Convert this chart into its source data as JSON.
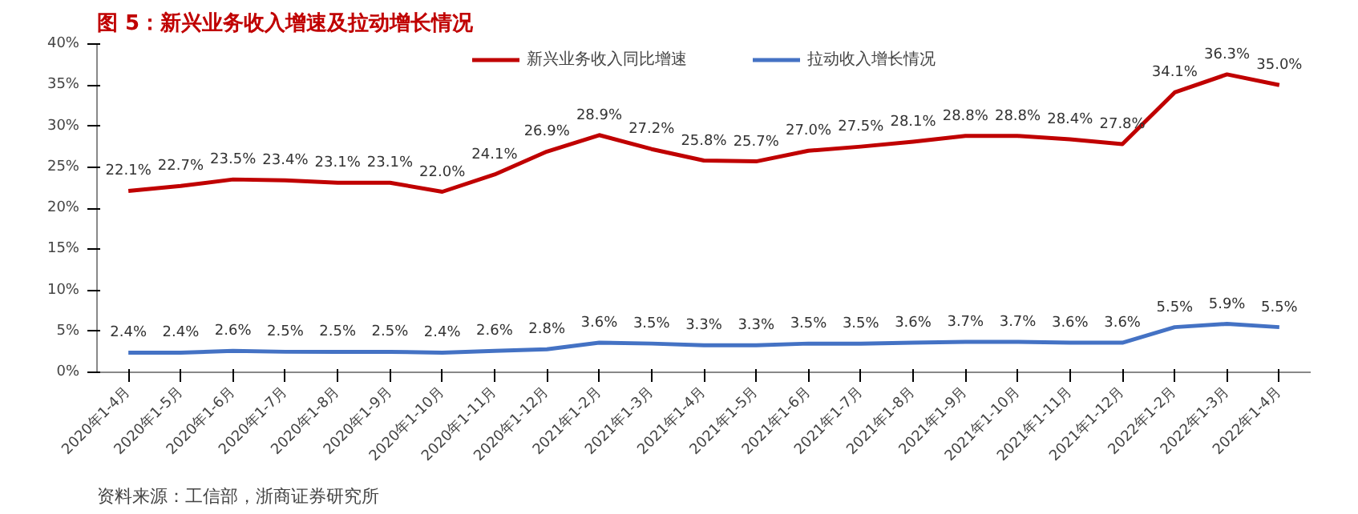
{
  "chart_data": {
    "type": "line",
    "title": "图 5：新兴业务收入增速及拉动增长情况",
    "categories": [
      "2020年1-4月",
      "2020年1-5月",
      "2020年1-6月",
      "2020年1-7月",
      "2020年1-8月",
      "2020年1-9月",
      "2020年1-10月",
      "2020年1-11月",
      "2020年1-12月",
      "2021年1-2月",
      "2021年1-3月",
      "2021年1-4月",
      "2021年1-5月",
      "2021年1-6月",
      "2021年1-7月",
      "2021年1-8月",
      "2021年1-9月",
      "2021年1-10月",
      "2021年1-11月",
      "2021年1-12月",
      "2022年1-2月",
      "2022年1-3月",
      "2022年1-4月"
    ],
    "series": [
      {
        "name": "新兴业务收入同比增速",
        "color": "#c00000",
        "values": [
          22.1,
          22.7,
          23.5,
          23.4,
          23.1,
          23.1,
          22.0,
          24.1,
          26.9,
          28.9,
          27.2,
          25.8,
          25.7,
          27.0,
          27.5,
          28.1,
          28.8,
          28.8,
          28.4,
          27.8,
          34.1,
          36.3,
          35.0
        ],
        "value_labels": [
          "22.1%",
          "22.7%",
          "23.5%",
          "23.4%",
          "23.1%",
          "23.1%",
          "22.0%",
          "24.1%",
          "26.9%",
          "28.9%",
          "27.2%",
          "25.8%",
          "25.7%",
          "27.0%",
          "27.5%",
          "28.1%",
          "28.8%",
          "28.8%",
          "28.4%",
          "27.8%",
          "34.1%",
          "36.3%",
          "35.0%"
        ]
      },
      {
        "name": "拉动收入增长情况",
        "color": "#4472c4",
        "values": [
          2.4,
          2.4,
          2.6,
          2.5,
          2.5,
          2.5,
          2.4,
          2.6,
          2.8,
          3.6,
          3.5,
          3.3,
          3.3,
          3.5,
          3.5,
          3.6,
          3.7,
          3.7,
          3.6,
          3.6,
          5.5,
          5.9,
          5.5
        ],
        "value_labels": [
          "2.4%",
          "2.4%",
          "2.6%",
          "2.5%",
          "2.5%",
          "2.5%",
          "2.4%",
          "2.6%",
          "2.8%",
          "3.6%",
          "3.5%",
          "3.3%",
          "3.3%",
          "3.5%",
          "3.5%",
          "3.6%",
          "3.7%",
          "3.7%",
          "3.6%",
          "3.6%",
          "5.5%",
          "5.9%",
          "5.5%"
        ]
      }
    ],
    "ylim": [
      0,
      40
    ],
    "yticks": [
      {
        "value": 0,
        "label": "0%"
      },
      {
        "value": 5,
        "label": "5%"
      },
      {
        "value": 10,
        "label": "10%"
      },
      {
        "value": 15,
        "label": "15%"
      },
      {
        "value": 20,
        "label": "20%"
      },
      {
        "value": 25,
        "label": "25%"
      },
      {
        "value": 30,
        "label": "30%"
      },
      {
        "value": 35,
        "label": "35%"
      },
      {
        "value": 40,
        "label": "40%"
      }
    ],
    "legend": "top",
    "marker": "none",
    "line_style": "solid",
    "grid": false,
    "annotations": [
      "资料来源：工信部，浙商证券研究所"
    ]
  }
}
